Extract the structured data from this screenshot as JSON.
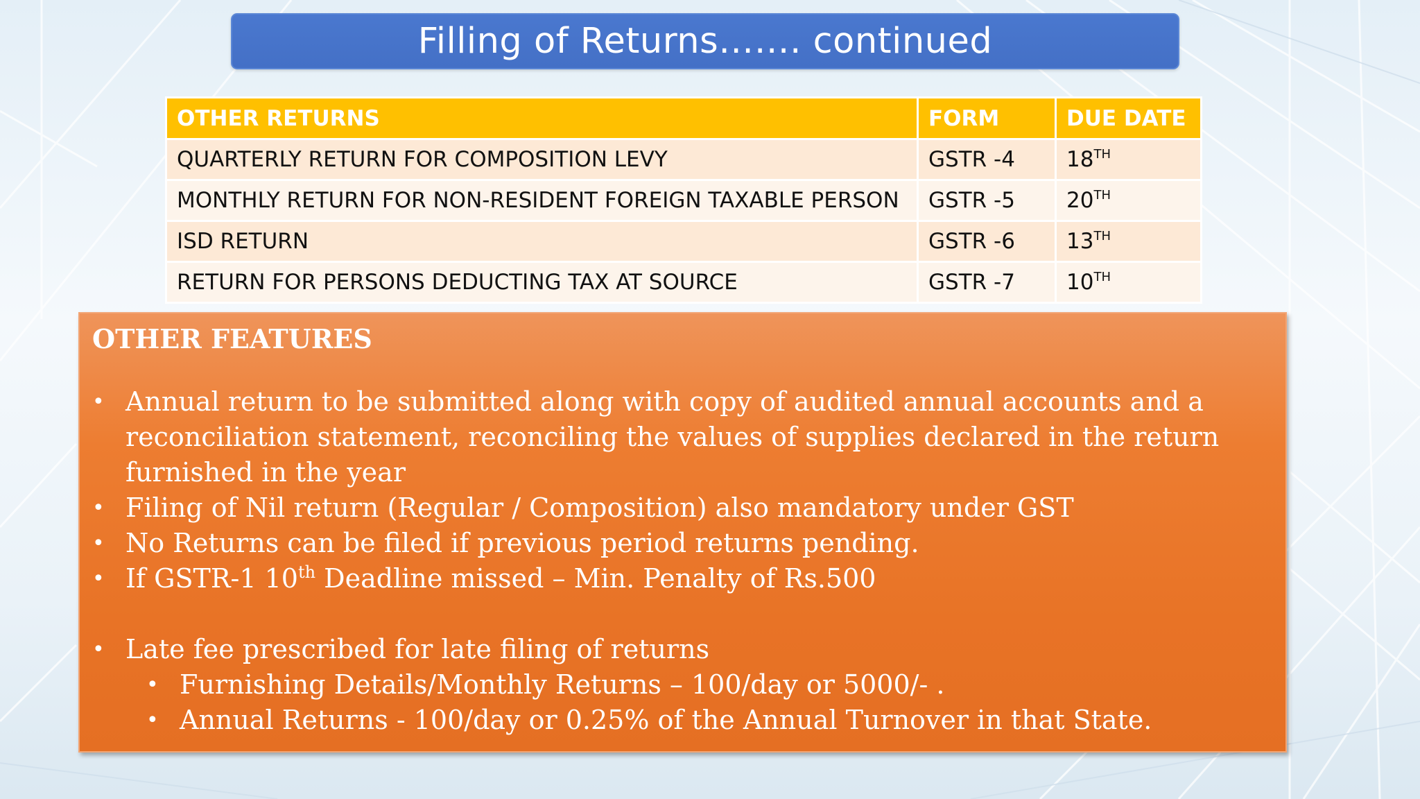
{
  "slide": {
    "title": "Filling of Returns……. continued"
  },
  "table": {
    "headers": [
      "OTHER RETURNS",
      "FORM",
      "DUE DATE"
    ],
    "rows": [
      {
        "description": "QUARTERLY RETURN FOR COMPOSITION LEVY",
        "form": "GSTR -4",
        "due_num": "18",
        "due_sup": "TH"
      },
      {
        "description": "MONTHLY RETURN FOR NON-RESIDENT FOREIGN TAXABLE PERSON",
        "form": "GSTR -5",
        "due_num": "20",
        "due_sup": "TH"
      },
      {
        "description": "ISD RETURN",
        "form": "GSTR -6",
        "due_num": "13",
        "due_sup": "TH"
      },
      {
        "description": "RETURN FOR PERSONS DEDUCTING TAX AT SOURCE",
        "form": "GSTR -7",
        "due_num": "10",
        "due_sup": "TH"
      }
    ]
  },
  "features": {
    "heading": "OTHER FEATURES",
    "bullet_symbol": "•",
    "items": [
      {
        "text": "Annual return to be submitted along with copy of audited annual accounts and a reconciliation statement, reconciling the values of supplies declared in the return furnished in the year"
      },
      {
        "text": "Filing of Nil return (Regular / Composition) also mandatory under GST"
      },
      {
        "text": "No Returns can be filed if previous period returns pending."
      },
      {
        "text_before": "If GSTR-1 10",
        "sup": "th",
        "text_after": " Deadline missed – Min. Penalty of Rs.500"
      },
      {
        "text": "Late fee prescribed for late filing of returns"
      }
    ],
    "sub_items": [
      "Furnishing Details/Monthly Returns – 100/day or 5000/- .",
      "Annual Returns -  100/day or 0.25% of the Annual Turnover in that State."
    ]
  },
  "colors": {
    "title_bar": "#4472c4",
    "table_header": "#ffc000",
    "table_row_odd": "#fde9d6",
    "table_row_even": "#fdf4eb",
    "features_box": "#ed7d31"
  }
}
